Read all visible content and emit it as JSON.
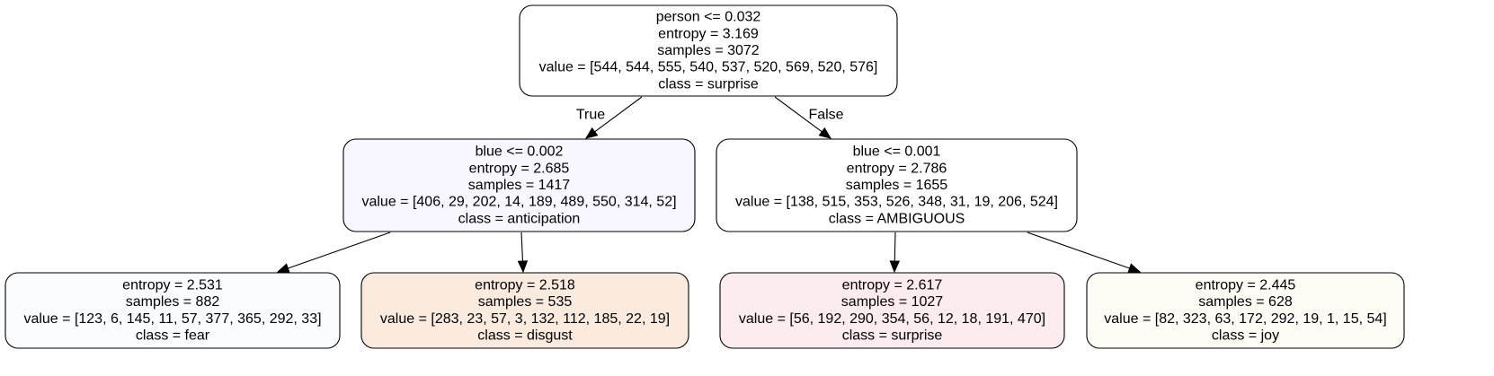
{
  "nodes": [
    {
      "id": "n0",
      "fill": "#ffffff",
      "lines": [
        "person <= 0.032",
        "entropy = 3.169",
        "samples = 3072",
        "value = [544, 544, 555, 540, 537, 520, 569, 520, 576]",
        "class = surprise"
      ]
    },
    {
      "id": "n1",
      "fill": "#f8f6fe",
      "lines": [
        "blue <= 0.002",
        "entropy = 2.685",
        "samples = 1417",
        "value = [406, 29, 202, 14, 189, 489, 550, 314, 52]",
        "class = anticipation"
      ]
    },
    {
      "id": "n2",
      "fill": "#ffffff",
      "lines": [
        "blue <= 0.001",
        "entropy = 2.786",
        "samples = 1655",
        "value = [138, 515, 353, 526, 348, 31, 19, 206, 524]",
        "class = AMBIGUOUS"
      ]
    },
    {
      "id": "n3",
      "fill": "#fafcfe",
      "lines": [
        "entropy = 2.531",
        "samples = 882",
        "value = [123, 6, 145, 11, 57, 377, 365, 292, 33]",
        "class = fear"
      ]
    },
    {
      "id": "n4",
      "fill": "#fbebdf",
      "lines": [
        "entropy = 2.518",
        "samples = 535",
        "value = [283, 23, 57, 3, 132, 112, 185, 22, 19]",
        "class = disgust"
      ]
    },
    {
      "id": "n5",
      "fill": "#fcebef",
      "lines": [
        "entropy = 2.617",
        "samples = 1027",
        "value = [56, 192, 290, 354, 56, 12, 18, 191, 470]",
        "class = surprise"
      ]
    },
    {
      "id": "n6",
      "fill": "#fdfdf5",
      "lines": [
        "entropy = 2.445",
        "samples = 628",
        "value = [82, 323, 63, 172, 292, 19, 1, 15, 54]",
        "class = joy"
      ]
    }
  ],
  "edges": [
    {
      "from": "n0",
      "to": "n1",
      "label": "True"
    },
    {
      "from": "n0",
      "to": "n2",
      "label": "False"
    },
    {
      "from": "n1",
      "to": "n3",
      "label": ""
    },
    {
      "from": "n1",
      "to": "n4",
      "label": ""
    },
    {
      "from": "n2",
      "to": "n5",
      "label": ""
    },
    {
      "from": "n2",
      "to": "n6",
      "label": ""
    }
  ]
}
